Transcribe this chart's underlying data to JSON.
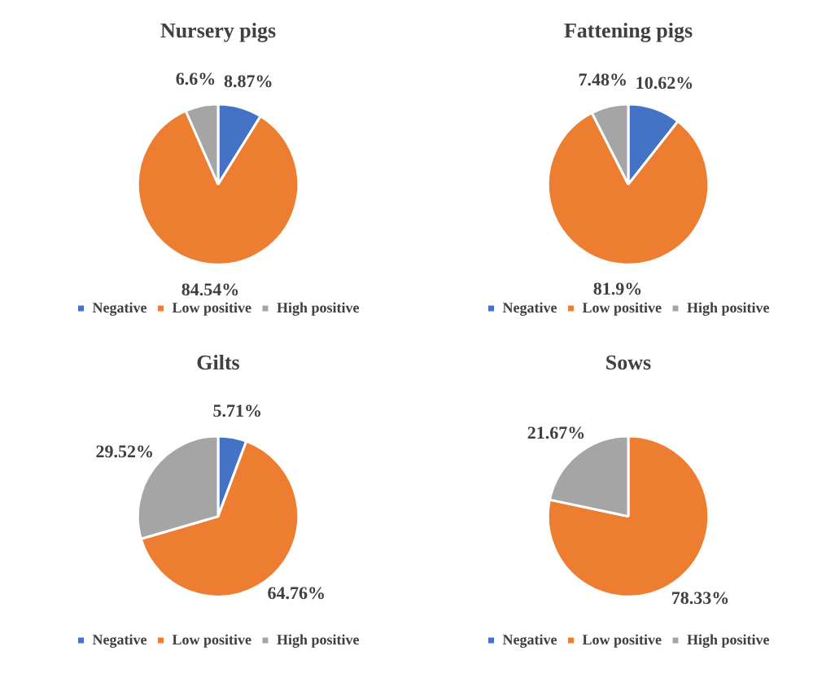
{
  "chart_data": [
    {
      "type": "pie",
      "title": "Nursery pigs",
      "categories": [
        "Negative",
        "Low positive",
        "High positive"
      ],
      "values": [
        8.87,
        84.54,
        6.6
      ],
      "colors": [
        "#4472c4",
        "#ed7d31",
        "#a5a5a5"
      ],
      "value_labels": [
        "8.87%",
        "84.54%",
        "6.6%"
      ],
      "legend": "bottom"
    },
    {
      "type": "pie",
      "title": "Fattening pigs",
      "categories": [
        "Negative",
        "Low positive",
        "High positive"
      ],
      "values": [
        10.62,
        81.9,
        7.48
      ],
      "colors": [
        "#4472c4",
        "#ed7d31",
        "#a5a5a5"
      ],
      "value_labels": [
        "10.62%",
        "81.9%",
        "7.48%"
      ],
      "legend": "bottom"
    },
    {
      "type": "pie",
      "title": "Gilts",
      "categories": [
        "Negative",
        "Low positive",
        "High positive"
      ],
      "values": [
        5.71,
        64.76,
        29.52
      ],
      "colors": [
        "#4472c4",
        "#ed7d31",
        "#a5a5a5"
      ],
      "value_labels": [
        "5.71%",
        "64.76%",
        "29.52%"
      ],
      "legend": "bottom"
    },
    {
      "type": "pie",
      "title": "Sows",
      "categories": [
        "Negative",
        "Low positive",
        "High positive"
      ],
      "values": [
        0,
        78.33,
        21.67
      ],
      "colors": [
        "#4472c4",
        "#ed7d31",
        "#a5a5a5"
      ],
      "value_labels": [
        null,
        "78.33%",
        "21.67%"
      ],
      "legend": "bottom"
    }
  ]
}
